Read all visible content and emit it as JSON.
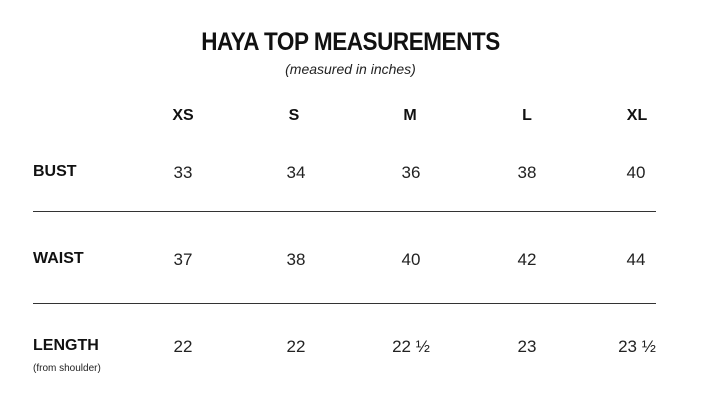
{
  "title": "HAYA TOP MEASUREMENTS",
  "subtitle": "(measured in inches)",
  "sizes": [
    "XS",
    "S",
    "M",
    "L",
    "XL"
  ],
  "rows": [
    {
      "label": "BUST",
      "sublabel": "",
      "values": [
        "33",
        "34",
        "36",
        "38",
        "40"
      ]
    },
    {
      "label": "WAIST",
      "sublabel": "",
      "values": [
        "37",
        "38",
        "40",
        "42",
        "44"
      ]
    },
    {
      "label": "LENGTH",
      "sublabel": "(from shoulder)",
      "values": [
        "22",
        "22",
        "22 ½",
        "23",
        "23 ½"
      ]
    }
  ]
}
